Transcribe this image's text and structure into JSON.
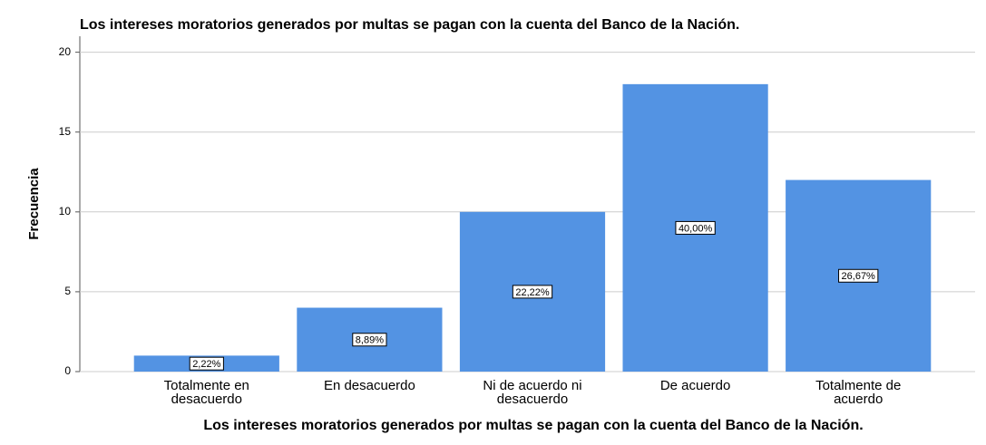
{
  "chart_data": {
    "type": "bar",
    "title": "Los intereses moratorios generados por multas se pagan con la cuenta del Banco de la Nación.",
    "x_label": "Los intereses moratorios generados por multas se pagan con la cuenta del Banco de la Nación.",
    "y_label": "Frecuencia",
    "categories": [
      [
        "Totalmente en",
        "desacuerdo"
      ],
      [
        "En desacuerdo"
      ],
      [
        "Ni de acuerdo ni",
        "desacuerdo"
      ],
      [
        "De acuerdo"
      ],
      [
        "Totalmente de",
        "acuerdo"
      ]
    ],
    "values": [
      1,
      4,
      10,
      18,
      12
    ],
    "percent_labels": [
      "2,22%",
      "8,89%",
      "22,22%",
      "40,00%",
      "26,67%"
    ],
    "color": "#5393e3",
    "ylim": [
      0,
      21
    ],
    "yticks": [
      0,
      5,
      10,
      15,
      20
    ],
    "grid": true
  }
}
